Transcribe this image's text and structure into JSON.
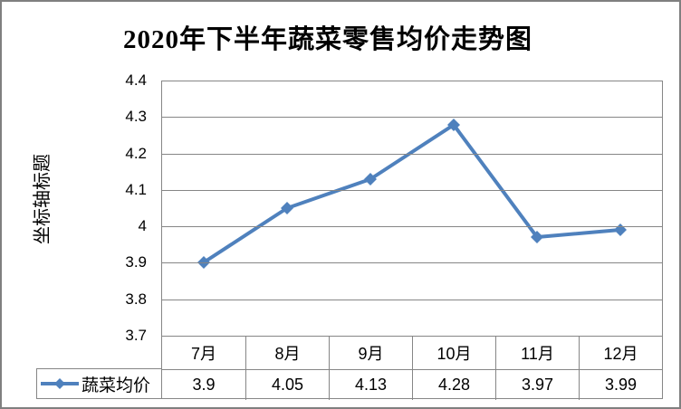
{
  "window": {
    "background": "#FFFFFF",
    "border_color": "#808080"
  },
  "chart_data": {
    "type": "line",
    "title": "2020年下半年蔬菜零售均价走势图",
    "y_axis_title": "坐标轴标题",
    "categories": [
      "7月",
      "8月",
      "9月",
      "10月",
      "11月",
      "12月"
    ],
    "series": [
      {
        "name": "蔬菜均价",
        "values": [
          3.9,
          4.05,
          4.13,
          4.28,
          3.97,
          3.99
        ],
        "display_values": [
          "3.9",
          "4.05",
          "4.13",
          "4.28",
          "3.97",
          "3.99"
        ],
        "color": "#4F81BD",
        "marker": "diamond",
        "line_width": 4
      }
    ],
    "ylim": [
      3.7,
      4.4
    ],
    "ytick_labels": [
      "4.4",
      "4.3",
      "4.2",
      "4.1",
      "4",
      "3.9",
      "3.8",
      "3.7"
    ],
    "grid": "horizontal-only",
    "gridline_color": "#868686",
    "legend_position": "bottom-left",
    "data_table_shown": true
  }
}
